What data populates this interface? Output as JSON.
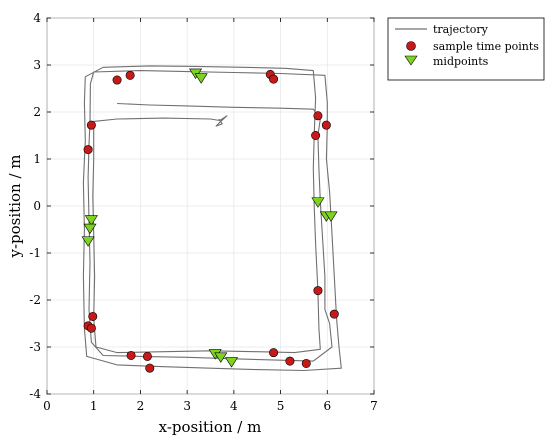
{
  "chart_data": {
    "type": "scatter",
    "title": "",
    "xlabel": "x-position / m",
    "ylabel": "y-position / m",
    "xlim": [
      0,
      7
    ],
    "ylim": [
      -4,
      4
    ],
    "xticks": [
      "0",
      "1",
      "2",
      "3",
      "4",
      "5",
      "6",
      "7"
    ],
    "yticks": [
      "4",
      "3",
      "2",
      "1",
      "0",
      "-1",
      "-2",
      "-3",
      "-4"
    ],
    "grid": true,
    "legend_placement": "outside-top-right",
    "colors": {
      "trajectory": "#707070",
      "sample": "#c61a1a",
      "midpoint": "#7ed321"
    },
    "series": [
      {
        "name": "trajectory",
        "kind": "line",
        "points": [
          [
            1.5,
            2.18
          ],
          [
            2.2,
            2.15
          ],
          [
            3.0,
            2.13
          ],
          [
            4.0,
            2.1
          ],
          [
            5.0,
            2.08
          ],
          [
            5.7,
            2.06
          ],
          [
            5.85,
            1.85
          ],
          [
            5.8,
            1.5
          ],
          [
            5.82,
            0.8
          ],
          [
            5.85,
            0.1
          ],
          [
            5.9,
            -0.7
          ],
          [
            5.95,
            -1.5
          ],
          [
            5.95,
            -2.2
          ],
          [
            6.05,
            -2.5
          ],
          [
            6.1,
            -3.0
          ],
          [
            5.7,
            -3.3
          ],
          [
            5.0,
            -3.28
          ],
          [
            4.0,
            -3.25
          ],
          [
            3.0,
            -3.22
          ],
          [
            2.0,
            -3.2
          ],
          [
            1.2,
            -3.18
          ],
          [
            0.95,
            -2.9
          ],
          [
            0.9,
            -2.2
          ],
          [
            0.92,
            -1.2
          ],
          [
            0.9,
            -0.3
          ],
          [
            0.88,
            0.6
          ],
          [
            0.9,
            1.3
          ],
          [
            0.92,
            1.8
          ],
          [
            0.93,
            2.6
          ],
          [
            1.0,
            2.85
          ],
          [
            2.0,
            2.88
          ],
          [
            3.0,
            2.86
          ],
          [
            4.0,
            2.84
          ],
          [
            5.0,
            2.82
          ],
          [
            5.95,
            2.78
          ],
          [
            6.0,
            2.2
          ],
          [
            6.0,
            1.7
          ],
          [
            5.98,
            1.0
          ],
          [
            6.05,
            0.3
          ],
          [
            6.1,
            -0.6
          ],
          [
            6.15,
            -1.5
          ],
          [
            6.2,
            -2.4
          ],
          [
            6.25,
            -3.0
          ],
          [
            6.3,
            -3.45
          ],
          [
            5.5,
            -3.5
          ],
          [
            4.5,
            -3.48
          ],
          [
            3.5,
            -3.45
          ],
          [
            2.5,
            -3.42
          ],
          [
            1.5,
            -3.38
          ],
          [
            0.85,
            -3.2
          ],
          [
            0.8,
            -2.6
          ],
          [
            0.78,
            -1.5
          ],
          [
            0.8,
            -0.5
          ],
          [
            0.78,
            0.5
          ],
          [
            0.82,
            1.4
          ],
          [
            0.8,
            2.2
          ],
          [
            0.82,
            2.75
          ],
          [
            1.2,
            2.95
          ],
          [
            2.2,
            2.98
          ],
          [
            3.2,
            2.97
          ],
          [
            4.2,
            2.95
          ],
          [
            5.1,
            2.93
          ],
          [
            5.7,
            2.88
          ],
          [
            5.75,
            2.3
          ],
          [
            5.72,
            1.5
          ],
          [
            5.7,
            0.8
          ],
          [
            5.72,
            0.0
          ],
          [
            5.75,
            -0.8
          ],
          [
            5.8,
            -1.8
          ],
          [
            5.82,
            -2.6
          ],
          [
            5.85,
            -3.05
          ],
          [
            5.3,
            -3.12
          ],
          [
            4.5,
            -3.1
          ],
          [
            3.5,
            -3.08
          ],
          [
            2.5,
            -3.1
          ],
          [
            1.5,
            -3.12
          ],
          [
            1.05,
            -3.0
          ],
          [
            1.0,
            -2.4
          ],
          [
            1.02,
            -1.5
          ],
          [
            1.0,
            -0.6
          ],
          [
            0.98,
            0.2
          ],
          [
            1.0,
            1.0
          ],
          [
            1.0,
            1.8
          ],
          [
            1.5,
            1.85
          ],
          [
            2.5,
            1.87
          ],
          [
            3.5,
            1.85
          ],
          [
            3.7,
            1.82
          ],
          [
            3.85,
            1.92
          ],
          [
            3.7,
            1.78
          ],
          [
            3.62,
            1.7
          ],
          [
            3.75,
            1.75
          ],
          [
            3.68,
            1.85
          ]
        ]
      },
      {
        "name": "sample time points",
        "kind": "circle",
        "points": [
          [
            1.5,
            2.68
          ],
          [
            1.78,
            2.78
          ],
          [
            4.78,
            2.8
          ],
          [
            4.85,
            2.7
          ],
          [
            0.95,
            1.72
          ],
          [
            0.88,
            1.2
          ],
          [
            5.8,
            1.92
          ],
          [
            5.98,
            1.72
          ],
          [
            5.75,
            1.5
          ],
          [
            5.8,
            -1.8
          ],
          [
            6.15,
            -2.3
          ],
          [
            0.88,
            -2.55
          ],
          [
            0.95,
            -2.6
          ],
          [
            0.98,
            -2.35
          ],
          [
            1.8,
            -3.18
          ],
          [
            2.15,
            -3.2
          ],
          [
            2.2,
            -3.45
          ],
          [
            4.85,
            -3.12
          ],
          [
            5.2,
            -3.3
          ],
          [
            5.55,
            -3.35
          ]
        ]
      },
      {
        "name": "midpoints",
        "kind": "triangle",
        "points": [
          [
            3.18,
            2.82
          ],
          [
            3.3,
            2.72
          ],
          [
            5.8,
            0.08
          ],
          [
            5.98,
            -0.22
          ],
          [
            6.08,
            -0.22
          ],
          [
            0.95,
            -0.3
          ],
          [
            0.92,
            -0.48
          ],
          [
            0.88,
            -0.75
          ],
          [
            3.6,
            -3.15
          ],
          [
            3.72,
            -3.22
          ],
          [
            3.95,
            -3.32
          ]
        ]
      }
    ]
  }
}
